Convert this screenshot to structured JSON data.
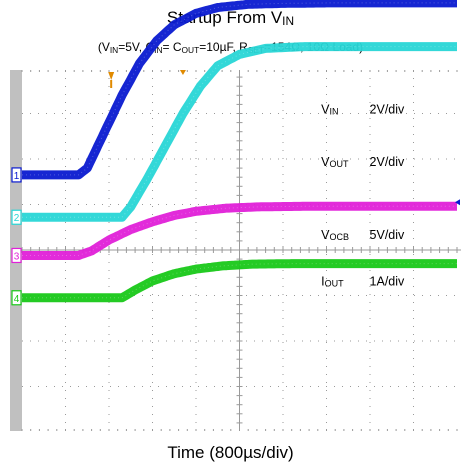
{
  "title": {
    "main": "Startup From V",
    "sub": "IN"
  },
  "subtitle": {
    "p1": "(V",
    "s1": "IN",
    "p2": "=5V, C",
    "s2": "IN",
    "p3": "= C",
    "s3": "OUT",
    "p4": "=10µF, R",
    "s4": "SET",
    "p5": "=154Ω, 10Ω Load)"
  },
  "xlabel": "Time (800µs/div)",
  "colors": {
    "background": "#ffffff",
    "grid": "#9a9a9a",
    "left_bar": "#c0c0c0",
    "trigger_marker": "#e08a00",
    "vin": "#0a1ad0",
    "vout": "#28d6d6",
    "vocb": "#e020d8",
    "iout": "#18c818"
  },
  "chart_data": {
    "type": "line",
    "xlabel": "Time (800µs/div)",
    "x_unit": "div",
    "x_range": [
      0,
      10
    ],
    "y_unit": "div",
    "y_range": [
      0,
      8
    ],
    "grid": true,
    "series": [
      {
        "name": "VIN",
        "name_main": "V",
        "name_sub": "IN",
        "scale": "2V/div",
        "channel": "1",
        "color": "#0a1ad0",
        "x": [
          0,
          1.3,
          1.5,
          1.9,
          2.3,
          2.7,
          3.1,
          3.5,
          4.0,
          4.5,
          5.2,
          6.0,
          7.0,
          10
        ],
        "y": [
          1.65,
          1.65,
          1.8,
          2.6,
          3.4,
          4.1,
          4.6,
          4.95,
          5.2,
          5.33,
          5.4,
          5.42,
          5.43,
          5.43
        ]
      },
      {
        "name": "VOUT",
        "name_main": "V",
        "name_sub": "OUT",
        "scale": "2V/div",
        "channel": "2",
        "color": "#28d6d6",
        "x": [
          0,
          2.3,
          2.5,
          2.9,
          3.3,
          3.7,
          4.1,
          4.5,
          5.0,
          5.6,
          6.5,
          10
        ],
        "y": [
          0.72,
          0.72,
          0.95,
          1.6,
          2.3,
          3.0,
          3.6,
          4.05,
          4.3,
          4.43,
          4.47,
          4.47
        ]
      },
      {
        "name": "VOCB",
        "name_main": "V",
        "name_sub": "OCB",
        "scale": "5V/div",
        "channel": "3",
        "color": "#e020d8",
        "x": [
          0,
          1.3,
          1.6,
          2.0,
          2.5,
          3.0,
          3.5,
          4.0,
          4.7,
          5.5,
          6.5,
          10
        ],
        "y": [
          -0.12,
          -0.12,
          -0.02,
          0.22,
          0.45,
          0.62,
          0.76,
          0.85,
          0.92,
          0.95,
          0.96,
          0.96
        ]
      },
      {
        "name": "IOUT",
        "name_main": "I",
        "name_sub": "OUT",
        "scale": "1A/div",
        "channel": "4",
        "color": "#18c818",
        "x": [
          0,
          2.3,
          2.6,
          3.0,
          3.5,
          4.0,
          4.6,
          5.3,
          6.2,
          10
        ],
        "y": [
          -1.05,
          -1.05,
          -0.88,
          -0.68,
          -0.52,
          -0.42,
          -0.35,
          -0.31,
          -0.3,
          -0.3
        ]
      }
    ]
  }
}
